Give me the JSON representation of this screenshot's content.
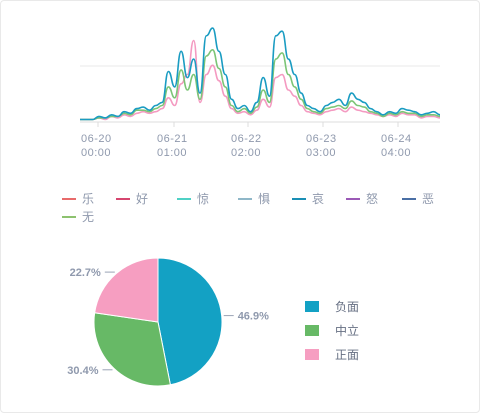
{
  "chart_data": [
    {
      "type": "line",
      "x_ticks": [
        "06-20\n00:00",
        "06-21\n01:00",
        "06-22\n02:00",
        "06-23\n03:00",
        "06-24\n04:00"
      ],
      "legend": [
        {
          "name": "乐",
          "color": "#e86b6b"
        },
        {
          "name": "好",
          "color": "#d6466f"
        },
        {
          "name": "惊",
          "color": "#4fd1c5"
        },
        {
          "name": "惧",
          "color": "#8fb7c8"
        },
        {
          "name": "哀",
          "color": "#1a8fb5"
        },
        {
          "name": "怒",
          "color": "#9b59b6"
        },
        {
          "name": "恶",
          "color": "#4a6fa5"
        },
        {
          "name": "无",
          "color": "#8dc26f"
        }
      ],
      "series": [
        {
          "color": "#1a9cc2",
          "values": [
            1,
            1,
            1,
            3,
            2,
            4,
            3,
            6,
            5,
            8,
            9,
            7,
            10,
            12,
            32,
            22,
            45,
            28,
            40,
            18,
            55,
            60,
            45,
            30,
            14,
            8,
            10,
            6,
            12,
            28,
            16,
            55,
            58,
            40,
            30,
            18,
            10,
            8,
            6,
            10,
            12,
            14,
            10,
            18,
            14,
            12,
            8,
            6,
            4,
            6,
            5,
            8,
            7,
            6,
            4,
            5,
            6,
            4
          ]
        },
        {
          "color": "#7cc576",
          "values": [
            1,
            1,
            1,
            2,
            2,
            3,
            3,
            5,
            4,
            7,
            7,
            6,
            8,
            10,
            22,
            15,
            33,
            20,
            30,
            14,
            42,
            46,
            34,
            22,
            10,
            6,
            8,
            5,
            9,
            20,
            12,
            40,
            44,
            30,
            22,
            14,
            8,
            6,
            5,
            8,
            9,
            10,
            8,
            13,
            10,
            9,
            6,
            5,
            3,
            5,
            4,
            6,
            5,
            5,
            3,
            4,
            4,
            3
          ]
        },
        {
          "color": "#f49ac1",
          "values": [
            1,
            1,
            1,
            2,
            1,
            3,
            2,
            4,
            3,
            5,
            6,
            5,
            6,
            8,
            15,
            10,
            24,
            30,
            52,
            12,
            30,
            36,
            26,
            16,
            8,
            5,
            6,
            4,
            7,
            14,
            9,
            28,
            30,
            20,
            16,
            10,
            6,
            5,
            4,
            6,
            7,
            8,
            6,
            9,
            7,
            6,
            5,
            4,
            3,
            4,
            3,
            5,
            4,
            4,
            2,
            3,
            3,
            2
          ]
        }
      ]
    },
    {
      "type": "pie",
      "slices": [
        {
          "name": "负面",
          "value": 46.9,
          "label": "46.9%",
          "color": "#13a1c4"
        },
        {
          "name": "中立",
          "value": 30.4,
          "label": "30.4%",
          "color": "#67b966"
        },
        {
          "name": "正面",
          "value": 22.7,
          "label": "22.7%",
          "color": "#f69ec1"
        }
      ]
    }
  ]
}
